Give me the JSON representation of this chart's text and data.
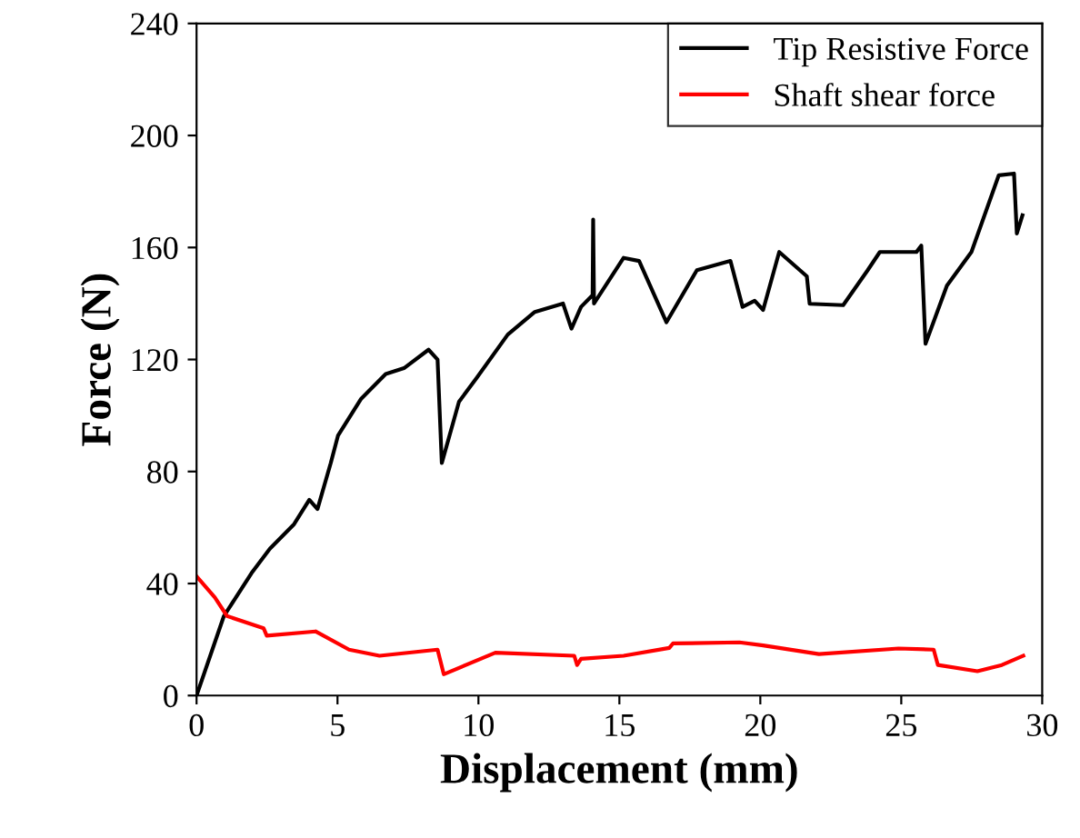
{
  "chart_data": {
    "type": "line",
    "xlabel": "Displacement (mm)",
    "ylabel": "Force (N)",
    "xlim": [
      0,
      30
    ],
    "xticks": [
      0,
      5,
      10,
      15,
      20,
      25,
      30
    ],
    "ylim": [
      0,
      240
    ],
    "yticks": [
      0,
      40,
      80,
      120,
      160,
      200,
      240
    ],
    "grid": false,
    "legend": "top right",
    "marker": "none",
    "line_style": "solid",
    "series": [
      {
        "name": "Tip Resistive Force",
        "color": "#000000",
        "x": [
          0,
          0.97,
          1.95,
          2.6,
          3.46,
          4.0,
          4.29,
          4.76,
          5.02,
          5.84,
          6.71,
          7.36,
          8.23,
          8.55,
          8.7,
          9.31,
          9.95,
          11.04,
          12.0,
          13.0,
          13.3,
          13.64,
          14.05,
          14.07,
          14.1,
          15.15,
          15.7,
          16.67,
          17.75,
          18.94,
          19.37,
          19.8,
          20.1,
          20.67,
          21.65,
          21.75,
          22.94,
          23.81,
          24.24,
          25.54,
          25.71,
          25.86,
          26.62,
          27.49,
          28.46,
          29.0,
          29.1,
          29.3
        ],
        "values": [
          0,
          28.4,
          43.7,
          52.4,
          61.2,
          69.9,
          66.6,
          83,
          92.9,
          106,
          114.8,
          116.9,
          123.5,
          120,
          83,
          104.9,
          113.6,
          128.9,
          137,
          140,
          131,
          138.8,
          143,
          170,
          140,
          156.3,
          155.2,
          133.3,
          151.9,
          155.2,
          138.8,
          141,
          137.7,
          158.4,
          149.7,
          139.9,
          139.4,
          151.9,
          158.4,
          158.4,
          160.7,
          125.6,
          146.4,
          158.4,
          185.8,
          186.4,
          165,
          171.5
        ]
      },
      {
        "name": "Shaft shear force",
        "color": "#ff0000",
        "x": [
          0,
          0.65,
          1.08,
          2.38,
          2.49,
          4.22,
          5.41,
          6.49,
          8.55,
          8.77,
          10.6,
          13.4,
          13.5,
          13.64,
          15.15,
          16.77,
          16.9,
          19.26,
          20.1,
          22.08,
          24.9,
          26.15,
          26.3,
          27.7,
          28.57,
          29.33
        ],
        "values": [
          42.6,
          35,
          28.4,
          24,
          21.4,
          22.9,
          16.4,
          14.2,
          16.4,
          7.6,
          15.3,
          14.2,
          10.9,
          13.1,
          14.2,
          17,
          18.6,
          19,
          17.9,
          14.8,
          16.8,
          16.4,
          10.9,
          8.7,
          10.9,
          14.2
        ]
      }
    ]
  }
}
